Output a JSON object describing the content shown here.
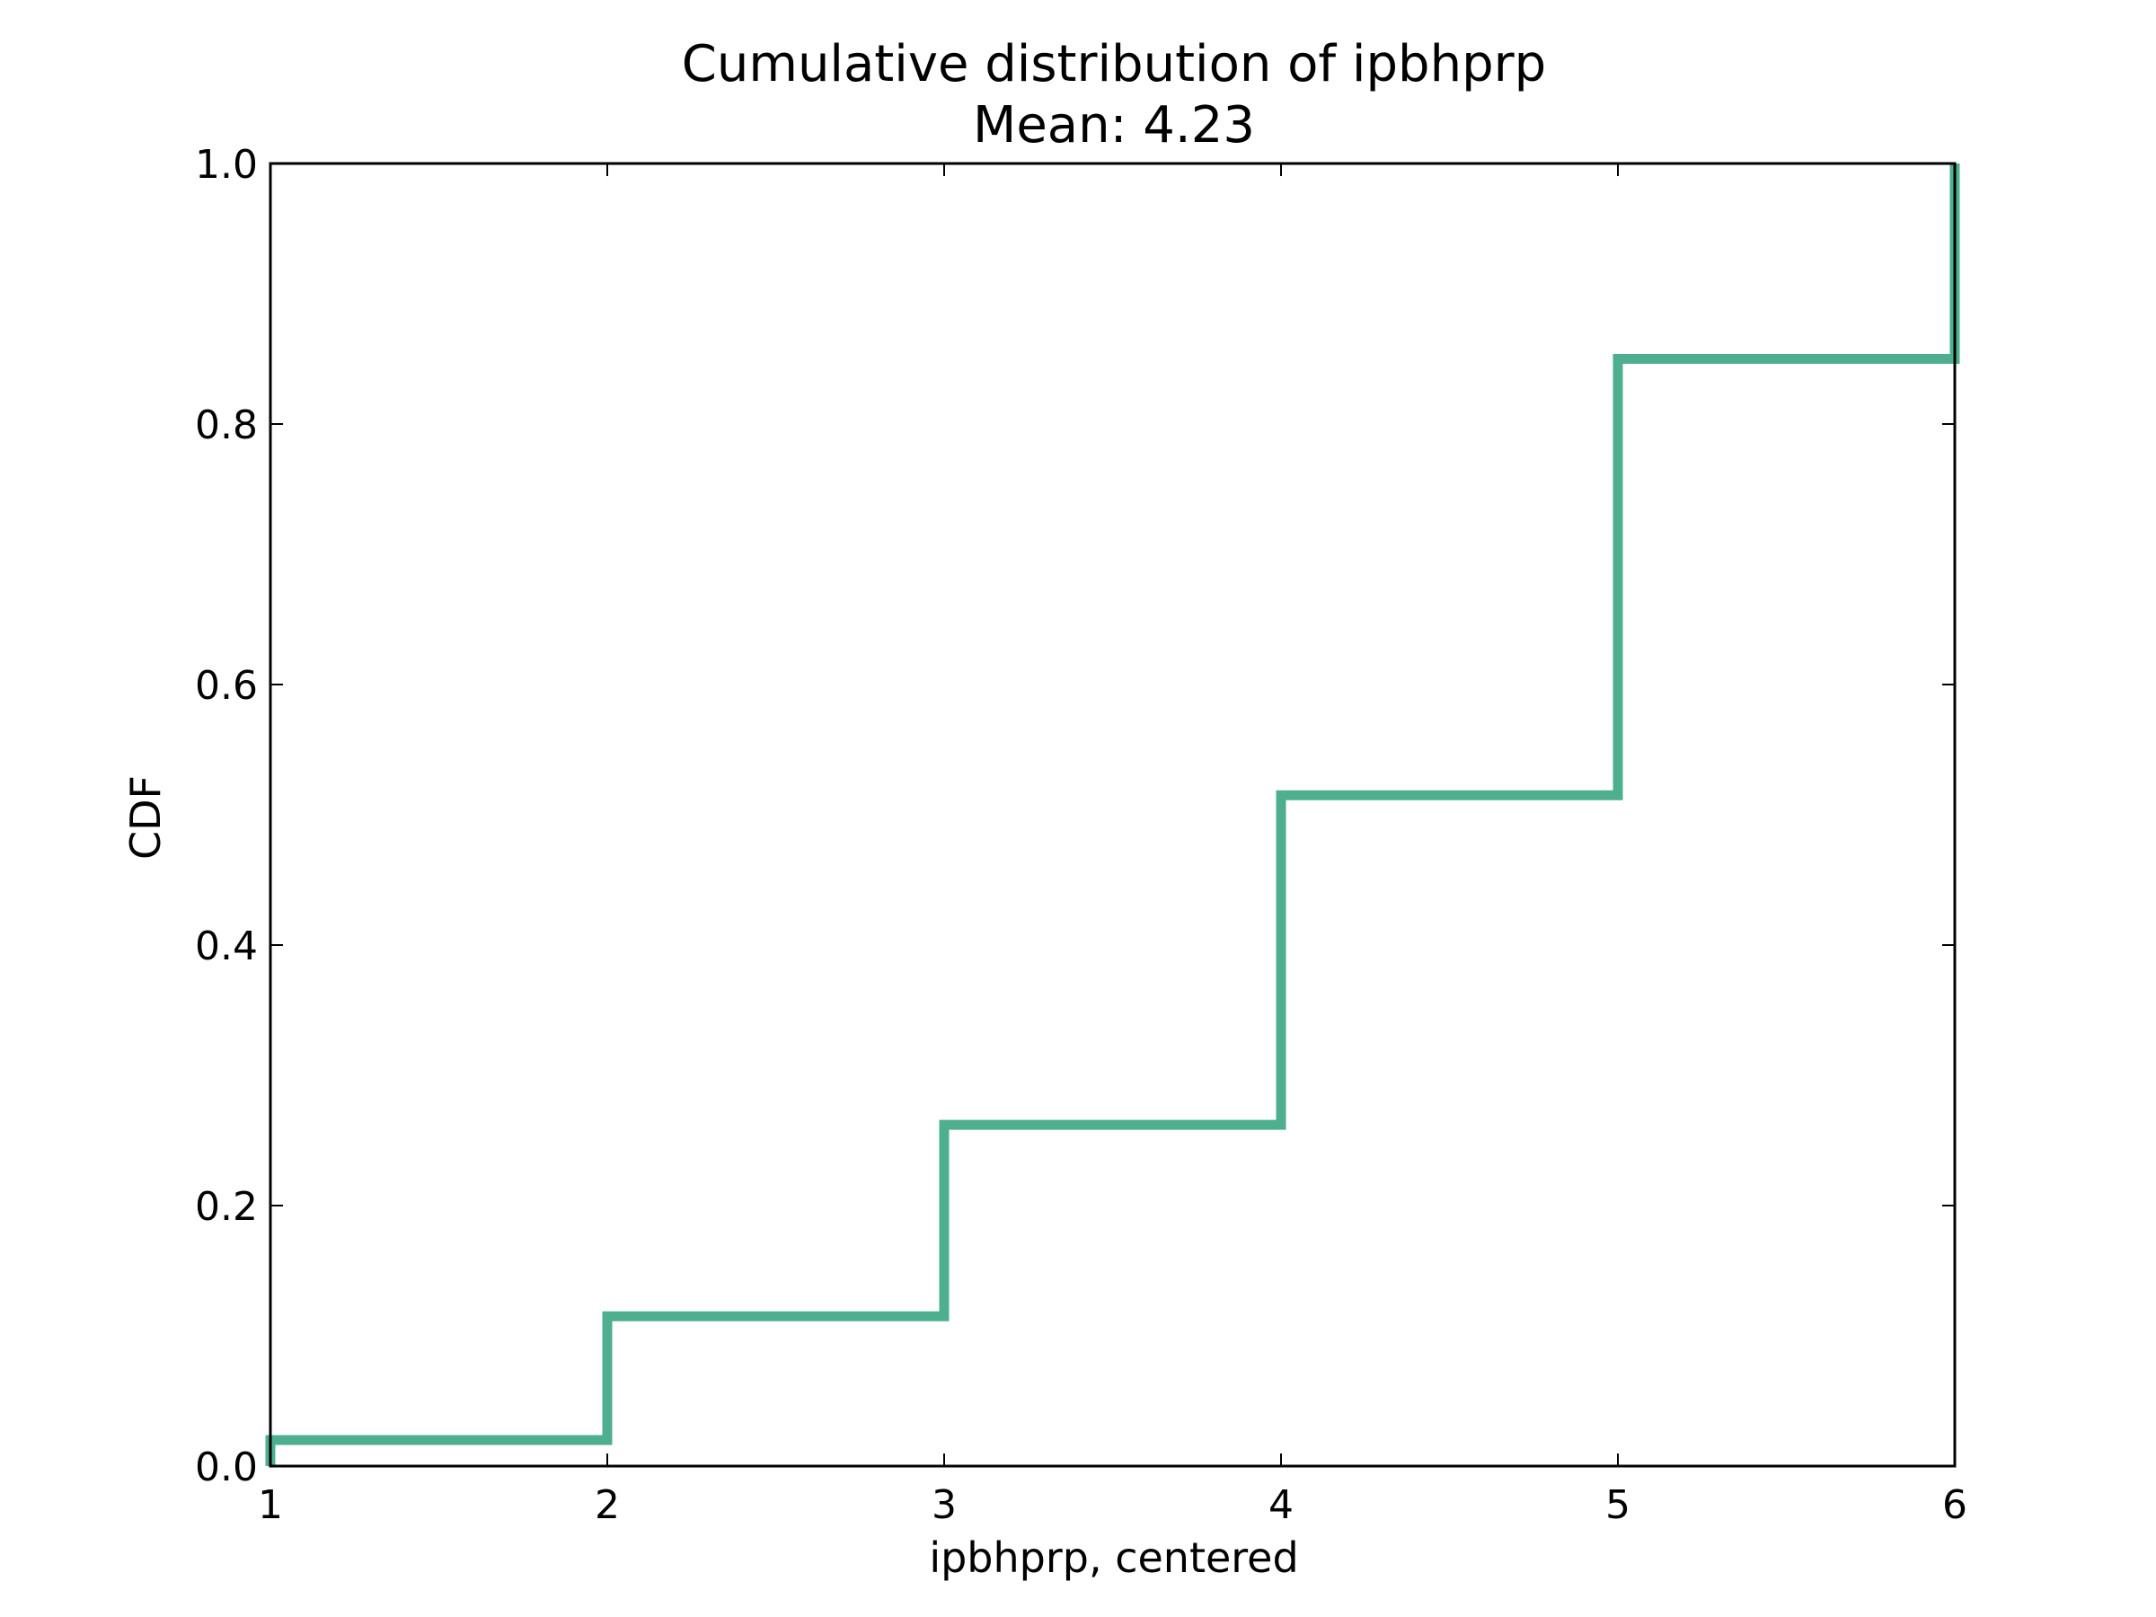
{
  "chart_data": {
    "type": "line",
    "step": true,
    "title": "Cumulative distribution of ipbhprp",
    "subtitle": "Mean: 4.23",
    "xlabel": "ipbhprp, centered",
    "ylabel": "CDF",
    "xlim": [
      1,
      6
    ],
    "ylim": [
      0,
      1.0
    ],
    "xticks": [
      1,
      2,
      3,
      4,
      5,
      6
    ],
    "xtick_labels": [
      "1",
      "2",
      "3",
      "4",
      "5",
      "6"
    ],
    "yticks": [
      0,
      0.2,
      0.4,
      0.6,
      0.8,
      1.0
    ],
    "ytick_labels": [
      "0.0",
      "0.2",
      "0.4",
      "0.6",
      "0.8",
      "1.0"
    ],
    "grid": false,
    "series": [
      {
        "color": "#4daf8e",
        "points": [
          {
            "x": 1,
            "y": 0.0
          },
          {
            "x": 1,
            "y": 0.02
          },
          {
            "x": 2,
            "y": 0.02
          },
          {
            "x": 2,
            "y": 0.115
          },
          {
            "x": 3,
            "y": 0.115
          },
          {
            "x": 3,
            "y": 0.262
          },
          {
            "x": 4,
            "y": 0.262
          },
          {
            "x": 4,
            "y": 0.515
          },
          {
            "x": 5,
            "y": 0.515
          },
          {
            "x": 5,
            "y": 0.85
          },
          {
            "x": 6,
            "y": 0.85
          },
          {
            "x": 6,
            "y": 1.0
          }
        ]
      }
    ]
  }
}
